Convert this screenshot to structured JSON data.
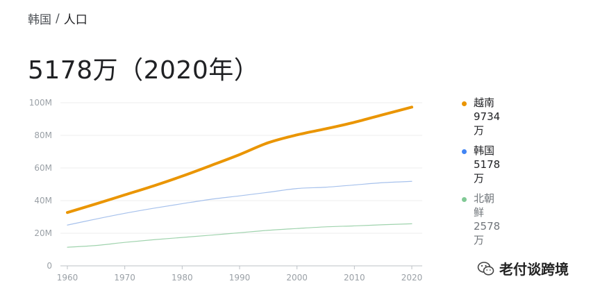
{
  "breadcrumb": {
    "parent": "韩国",
    "separator": "/",
    "current": "人口"
  },
  "headline": "5178万（2020年）",
  "legend": [
    {
      "name": "越南",
      "value": "9734万",
      "color": "#ea9500",
      "muted": false
    },
    {
      "name": "韩国",
      "value": "5178万",
      "color": "#4285f4",
      "muted": false
    },
    {
      "name": "北朝鲜",
      "value": "2578万",
      "color": "#81c995",
      "muted": true
    }
  ],
  "watermark": {
    "text": "老付谈跨境",
    "icon": "wechat-icon"
  },
  "chart_data": {
    "type": "line",
    "title": "",
    "xlabel": "",
    "ylabel": "",
    "xlim": [
      1960,
      2020
    ],
    "ylim": [
      0,
      100
    ],
    "x_ticks": [
      1960,
      1970,
      1980,
      1990,
      2000,
      2010,
      2020
    ],
    "y_ticks": [
      0,
      20,
      40,
      60,
      80,
      100
    ],
    "y_tick_labels": [
      "0",
      "20M",
      "40M",
      "60M",
      "80M",
      "100M"
    ],
    "grid": true,
    "legend_position": "right",
    "x": [
      1960,
      1965,
      1970,
      1975,
      1980,
      1985,
      1990,
      1995,
      2000,
      2005,
      2010,
      2015,
      2020
    ],
    "series": [
      {
        "name": "越南",
        "color": "#ea9500",
        "width": 4,
        "values": [
          32.7,
          38,
          43.5,
          49,
          55,
          61.5,
          68.2,
          75.5,
          80.3,
          84,
          88,
          92.7,
          97.3
        ]
      },
      {
        "name": "韩国",
        "color": "#a6c1ec",
        "width": 1.2,
        "values": [
          25.0,
          28.7,
          32.2,
          35.3,
          38.1,
          40.8,
          42.9,
          45.1,
          47.4,
          48.2,
          49.6,
          51.0,
          51.8
        ]
      },
      {
        "name": "北朝鲜",
        "color": "#9fd3ad",
        "width": 1.2,
        "values": [
          11.4,
          12.5,
          14.4,
          16.0,
          17.4,
          18.8,
          20.3,
          21.8,
          22.9,
          23.9,
          24.5,
          25.2,
          25.8
        ]
      }
    ]
  }
}
